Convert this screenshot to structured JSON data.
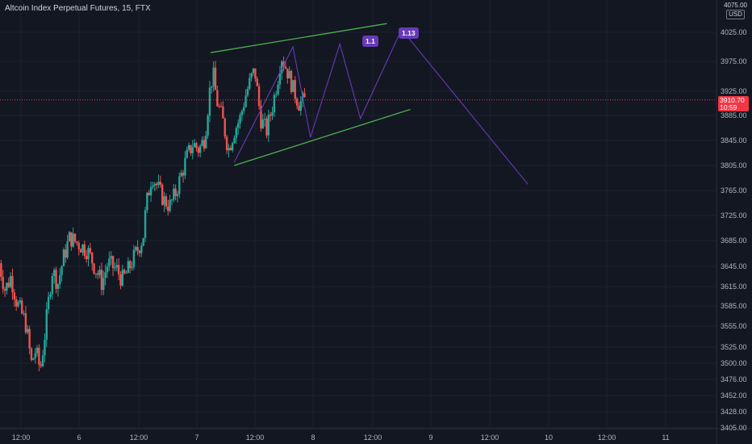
{
  "header": {
    "title": "Altcoin Index Perpetual Futures, 15, FTX"
  },
  "price_scale": {
    "currency": "USD",
    "top_partial_label": "4075.00",
    "current_price": "3910.70",
    "countdown": "10:59"
  },
  "annotations": {
    "fib_left": "1.1",
    "fib_right": "1.13"
  },
  "colors": {
    "background": "#131722",
    "up_candle": "#26a69a",
    "down_candle": "#ef5350",
    "channel_line": "#4caf50",
    "projection_line": "#673ab7",
    "current_price_line": "#f23645"
  },
  "chart_data": {
    "type": "candlestick",
    "title": "Altcoin Index Perpetual Futures, 15, FTX",
    "y_ticks": [
      "4025.00",
      "3975.00",
      "3925.00",
      "3885.00",
      "3845.00",
      "3805.00",
      "3765.00",
      "3725.00",
      "3685.00",
      "3645.00",
      "3615.00",
      "3585.00",
      "3555.00",
      "3525.00",
      "3500.00",
      "3476.00",
      "3452.00",
      "3428.00",
      "3405.00"
    ],
    "x_ticks": [
      "12:00",
      "6",
      "12:00",
      "7",
      "12:00",
      "8",
      "12:00",
      "9",
      "12:00",
      "10",
      "12:00",
      "11"
    ],
    "ylim": [
      3405,
      4075
    ],
    "grid": true,
    "close_path": [
      [
        0,
        3650
      ],
      [
        0.1,
        3610
      ],
      [
        0.2,
        3630
      ],
      [
        0.3,
        3590
      ],
      [
        0.45,
        3560
      ],
      [
        0.55,
        3500
      ],
      [
        0.62,
        3520
      ],
      [
        0.7,
        3490
      ],
      [
        0.8,
        3560
      ],
      [
        0.9,
        3640
      ],
      [
        1.0,
        3620
      ],
      [
        1.1,
        3660
      ],
      [
        1.2,
        3690
      ],
      [
        1.35,
        3680
      ],
      [
        1.5,
        3670
      ],
      [
        1.65,
        3640
      ],
      [
        1.75,
        3620
      ],
      [
        1.85,
        3650
      ],
      [
        2.0,
        3640
      ],
      [
        2.1,
        3625
      ],
      [
        2.2,
        3640
      ],
      [
        2.3,
        3660
      ],
      [
        2.45,
        3690
      ],
      [
        2.5,
        3740
      ],
      [
        2.6,
        3790
      ],
      [
        2.7,
        3770
      ],
      [
        2.8,
        3750
      ],
      [
        2.9,
        3740
      ],
      [
        3.0,
        3760
      ],
      [
        3.1,
        3790
      ],
      [
        3.2,
        3820
      ],
      [
        3.3,
        3840
      ],
      [
        3.4,
        3830
      ],
      [
        3.5,
        3850
      ],
      [
        3.6,
        3940
      ],
      [
        3.65,
        3950
      ],
      [
        3.7,
        3910
      ],
      [
        3.8,
        3880
      ],
      [
        3.9,
        3830
      ],
      [
        4.0,
        3860
      ],
      [
        4.1,
        3880
      ],
      [
        4.2,
        3920
      ],
      [
        4.3,
        3950
      ],
      [
        4.35,
        3960
      ],
      [
        4.45,
        3880
      ],
      [
        4.55,
        3860
      ],
      [
        4.65,
        3900
      ],
      [
        4.75,
        3950
      ],
      [
        4.8,
        3985
      ],
      [
        4.9,
        3960
      ],
      [
        5.0,
        3930
      ],
      [
        5.1,
        3905
      ],
      [
        5.2,
        3910
      ]
    ],
    "channel_upper": [
      [
        3.6,
        3990
      ],
      [
        6.6,
        4040
      ]
    ],
    "channel_lower": [
      [
        4.0,
        3805
      ],
      [
        7.0,
        3895
      ]
    ],
    "projection": [
      [
        4.0,
        3810
      ],
      [
        5.0,
        4000
      ],
      [
        5.3,
        3850
      ],
      [
        5.8,
        4005
      ],
      [
        6.15,
        3880
      ],
      [
        6.85,
        4030
      ],
      [
        9.0,
        3775
      ]
    ]
  }
}
